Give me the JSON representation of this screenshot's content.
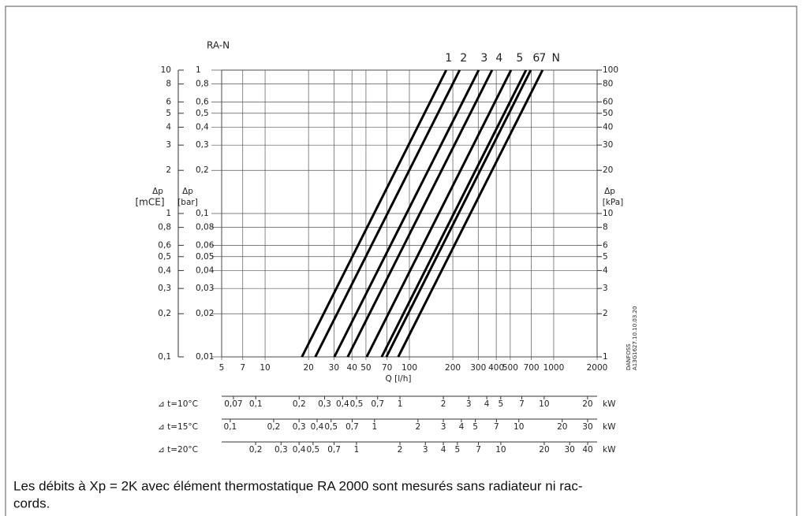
{
  "chart_data": {
    "type": "line",
    "title": "RA-N",
    "x_label": "Q  [l/h]",
    "y_label": [
      "Δp",
      "[bar]"
    ],
    "y2_label": [
      "Δp",
      "[kPa]"
    ],
    "y3_label": [
      "Δp",
      "[mCE]"
    ],
    "log_x": true,
    "log_y": true,
    "grid": true,
    "color": "#000000",
    "xlim": [
      5,
      2000
    ],
    "xticks": [
      5,
      7,
      10,
      20,
      30,
      40,
      50,
      70,
      100,
      200,
      300,
      400,
      500,
      700,
      1000,
      2000
    ],
    "ylim": [
      0.01,
      1
    ],
    "yticks": [
      1,
      {
        "value": 0.8,
        "label": "0,8"
      },
      {
        "value": 0.6,
        "label": "0,6"
      },
      {
        "value": 0.5,
        "label": "0,5"
      },
      {
        "value": 0.4,
        "label": "0,4"
      },
      {
        "value": 0.3,
        "label": "0,3"
      },
      {
        "value": 0.2,
        "label": "0,2"
      },
      {
        "value": 0.1,
        "label": "0,1"
      },
      {
        "value": 0.08,
        "label": "0,08"
      },
      {
        "value": 0.06,
        "label": "0,06"
      },
      {
        "value": 0.05,
        "label": "0,05"
      },
      {
        "value": 0.04,
        "label": "0,04"
      },
      {
        "value": 0.03,
        "label": "0,03"
      },
      {
        "value": 0.02,
        "label": "0,02"
      },
      {
        "value": 0.01,
        "label": "0,01"
      }
    ],
    "y2lim": [
      1,
      100
    ],
    "y2ticks": [
      100,
      80,
      60,
      50,
      40,
      30,
      20,
      10,
      8,
      6,
      5,
      4,
      3,
      2,
      1
    ],
    "y3lim": [
      0.1,
      10
    ],
    "y3ticks": [
      10,
      8,
      6,
      5,
      4,
      3,
      2,
      1,
      {
        "value": 0.8,
        "label": "0,8"
      },
      {
        "value": 0.6,
        "label": "0,6"
      },
      {
        "value": 0.5,
        "label": "0,5"
      },
      {
        "value": 0.4,
        "label": "0,4"
      },
      {
        "value": 0.3,
        "label": "0,3"
      },
      {
        "value": 0.2,
        "label": "0,2"
      },
      {
        "value": 0.1,
        "label": "0,1"
      }
    ],
    "series": [
      {
        "name": "1",
        "x": [
          18,
          180
        ],
        "values": [
          0.01,
          1
        ]
      },
      {
        "name": "2",
        "x": [
          22.3,
          223
        ],
        "values": [
          0.01,
          1
        ]
      },
      {
        "name": "3",
        "x": [
          30.2,
          302
        ],
        "values": [
          0.01,
          1
        ]
      },
      {
        "name": "4",
        "x": [
          37.4,
          374
        ],
        "values": [
          0.01,
          1
        ]
      },
      {
        "name": "5",
        "x": [
          50.6,
          506
        ],
        "values": [
          0.01,
          1
        ]
      },
      {
        "name": "6",
        "x": [
          64.3,
          643
        ],
        "values": [
          0.01,
          1
        ]
      },
      {
        "name": "7",
        "x": [
          69.3,
          693
        ],
        "values": [
          0.01,
          1
        ]
      },
      {
        "name": "N",
        "x": [
          83.7,
          837
        ],
        "values": [
          0.01,
          1
        ]
      }
    ],
    "power_scales": [
      {
        "label": "⊿ t=10°C",
        "unit": "kW",
        "xlim": [
          0.058,
          23.3
        ],
        "ticks": [
          {
            "value": 0.07,
            "label": "0,07"
          },
          {
            "value": 0.1,
            "label": "0,1"
          },
          {
            "value": 0.2,
            "label": "0,2"
          },
          {
            "value": 0.3,
            "label": "0,3"
          },
          {
            "value": 0.4,
            "label": "0,4"
          },
          {
            "value": 0.5,
            "label": "0,5"
          },
          {
            "value": 0.7,
            "label": "0,7"
          },
          1,
          2,
          3,
          4,
          5,
          7,
          10,
          20
        ]
      },
      {
        "label": "⊿ t=15°C",
        "unit": "kW",
        "xlim": [
          0.0872,
          34.9
        ],
        "ticks": [
          {
            "value": 0.1,
            "label": "0,1"
          },
          {
            "value": 0.2,
            "label": "0,2"
          },
          {
            "value": 0.3,
            "label": "0,3"
          },
          {
            "value": 0.4,
            "label": "0,4"
          },
          {
            "value": 0.5,
            "label": "0,5"
          },
          {
            "value": 0.7,
            "label": "0,7"
          },
          1,
          2,
          3,
          4,
          5,
          7,
          10,
          20,
          30
        ]
      },
      {
        "label": "⊿ t=20°C",
        "unit": "kW",
        "xlim": [
          0.1163,
          46.5
        ],
        "ticks": [
          {
            "value": 0.2,
            "label": "0,2"
          },
          {
            "value": 0.3,
            "label": "0,3"
          },
          {
            "value": 0.4,
            "label": "0,4"
          },
          {
            "value": 0.5,
            "label": "0,5"
          },
          {
            "value": 0.7,
            "label": "0,7"
          },
          1,
          2,
          3,
          4,
          5,
          7,
          10,
          20,
          30,
          40
        ]
      }
    ],
    "stamp": [
      "DANFOSS",
      "A13G1627.10.10.03.20"
    ],
    "caption": [
      "Les débits à Xp = 2K avec élément thermostatique RA 2000 sont mesurés sans radiateur ni rac-",
      "cords."
    ]
  }
}
